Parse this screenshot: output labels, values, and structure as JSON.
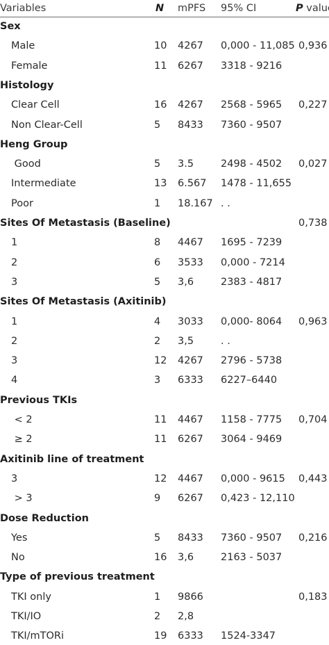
{
  "header": {
    "variables": "Variables",
    "n": "N",
    "mpfs": "mPFS",
    "ci": "95% CI",
    "p_bold": "P",
    "p_rest": " value"
  },
  "rows": [
    {
      "type": "section",
      "label": "Sex",
      "n": "",
      "mpfs": "",
      "ci": "",
      "p": ""
    },
    {
      "type": "item",
      "label": "Male",
      "n": "10",
      "mpfs": "4267",
      "ci": "0,000 - 11,085",
      "p": "0,936"
    },
    {
      "type": "item",
      "label": "Female",
      "n": "11",
      "mpfs": "6267",
      "ci": "3318 - 9216",
      "p": ""
    },
    {
      "type": "section",
      "label": "Histology",
      "n": "",
      "mpfs": "",
      "ci": "",
      "p": ""
    },
    {
      "type": "item",
      "label": "Clear Cell",
      "n": "16",
      "mpfs": "4267",
      "ci": "2568 - 5965",
      "p": "0,227"
    },
    {
      "type": "item",
      "label": "Non Clear-Cell",
      "n": "5",
      "mpfs": "8433",
      "ci": "7360 - 9507",
      "p": ""
    },
    {
      "type": "section",
      "label": "Heng Group",
      "n": "",
      "mpfs": "",
      "ci": "",
      "p": ""
    },
    {
      "type": "item",
      "label": " Good",
      "n": "5",
      "mpfs": "3.5",
      "ci": "2498 - 4502",
      "p": "0,027"
    },
    {
      "type": "item",
      "label": "Intermediate",
      "n": "13",
      "mpfs": "6.567",
      "ci": "1478 - 11,655",
      "p": ""
    },
    {
      "type": "item",
      "label": "Poor",
      "n": "1",
      "mpfs": "18.167",
      "ci": ". .",
      "p": ""
    },
    {
      "type": "section",
      "label": "Sites Of Metastasis (Baseline)",
      "n": "",
      "mpfs": "",
      "ci": "",
      "p": "0,738"
    },
    {
      "type": "item",
      "label": "1",
      "n": "8",
      "mpfs": "4467",
      "ci": "1695 - 7239",
      "p": ""
    },
    {
      "type": "item",
      "label": "2",
      "n": "6",
      "mpfs": "3533",
      "ci": "0,000 - 7214",
      "p": ""
    },
    {
      "type": "item",
      "label": "3",
      "n": "5",
      "mpfs": "3,6",
      "ci": "2383 - 4817",
      "p": ""
    },
    {
      "type": "section",
      "label": "Sites Of Metastasis (Axitinib)",
      "n": "",
      "mpfs": "",
      "ci": "",
      "p": ""
    },
    {
      "type": "item",
      "label": "1",
      "n": "4",
      "mpfs": "3033",
      "ci": "0,000- 8064",
      "p": "0,963"
    },
    {
      "type": "item",
      "label": "2",
      "n": "2",
      "mpfs": "3,5",
      "ci": ". .",
      "p": ""
    },
    {
      "type": "item",
      "label": "3",
      "n": "12",
      "mpfs": "4267",
      "ci": "2796 - 5738",
      "p": ""
    },
    {
      "type": "item",
      "label": "4",
      "n": "3",
      "mpfs": "6333",
      "ci": "6227–6440",
      "p": ""
    },
    {
      "type": "section",
      "label": "Previous TKIs",
      "n": "",
      "mpfs": "",
      "ci": "",
      "p": ""
    },
    {
      "type": "item",
      "label": " < 2",
      "n": "11",
      "mpfs": "4467",
      "ci": "1158 - 7775",
      "p": "0,704"
    },
    {
      "type": "item",
      "label": " ≥ 2",
      "n": "11",
      "mpfs": "6267",
      "ci": "3064 - 9469",
      "p": ""
    },
    {
      "type": "section",
      "label": "Axitinib line of treatment",
      "n": "",
      "mpfs": "",
      "ci": "",
      "p": ""
    },
    {
      "type": "item",
      "label": "3",
      "n": "12",
      "mpfs": "4467",
      "ci": "0,000 - 9615",
      "p": "0,443"
    },
    {
      "type": "item",
      "label": " > 3",
      "n": "9",
      "mpfs": "6267",
      "ci": "0,423 - 12,110",
      "p": ""
    },
    {
      "type": "section",
      "label": "Dose Reduction",
      "n": "",
      "mpfs": "",
      "ci": "",
      "p": ""
    },
    {
      "type": "item",
      "label": "Yes",
      "n": "5",
      "mpfs": "8433",
      "ci": "7360 - 9507",
      "p": "0,216"
    },
    {
      "type": "item",
      "label": "No",
      "n": "16",
      "mpfs": "3,6",
      "ci": "2163 - 5037",
      "p": ""
    },
    {
      "type": "section",
      "label": "Type of previous treatment",
      "n": "",
      "mpfs": "",
      "ci": "",
      "p": ""
    },
    {
      "type": "item",
      "label": "TKI only",
      "n": "1",
      "mpfs": "9866",
      "ci": "",
      "p": "0,183"
    },
    {
      "type": "item",
      "label": "TKI/IO",
      "n": "2",
      "mpfs": "2,8",
      "ci": "",
      "p": ""
    },
    {
      "type": "item",
      "label": "TKI/mTORi",
      "n": "19",
      "mpfs": "6333",
      "ci": "1524-3347",
      "p": ""
    }
  ]
}
